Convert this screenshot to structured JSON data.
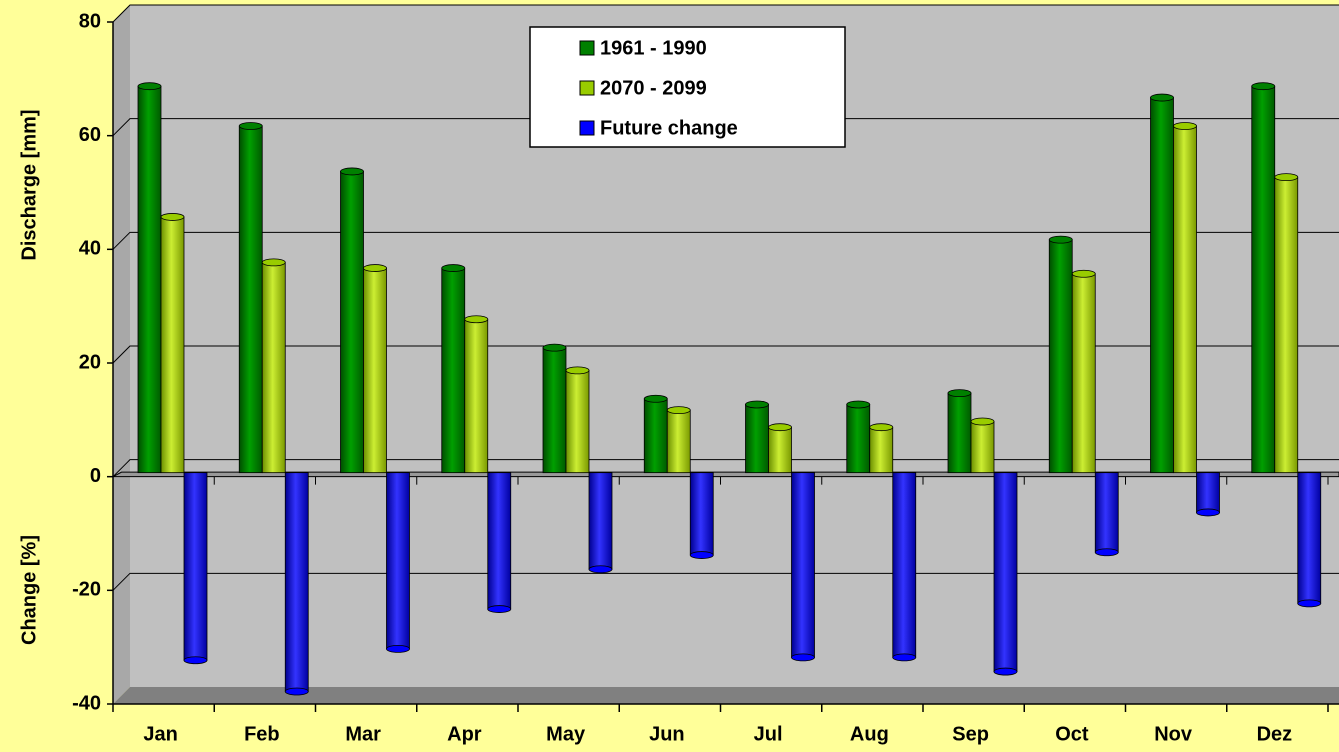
{
  "chart_data": {
    "type": "bar",
    "ylabel": "Discharge [mm]",
    "ylabel_change": "Change [%]",
    "categories": [
      "Jan",
      "Feb",
      "Mar",
      "Apr",
      "May",
      "Jun",
      "Jul",
      "Aug",
      "Sep",
      "Oct",
      "Nov",
      "Dez"
    ],
    "series": [
      {
        "name": "1961 - 1990",
        "color": "#008000",
        "values": [
          68,
          61,
          53,
          36,
          22,
          13,
          12,
          12,
          14,
          41,
          66,
          68
        ]
      },
      {
        "name": "2070 - 2099",
        "color": "#99cc00",
        "values": [
          45,
          37,
          36,
          27,
          18,
          11,
          8,
          8,
          9,
          35,
          61,
          52
        ]
      },
      {
        "name": "Future change",
        "color": "#0000ff",
        "values": [
          -33,
          -38.5,
          -31,
          -24,
          -17,
          -14.5,
          -32.5,
          -32.5,
          -35,
          -14,
          -7,
          -23
        ]
      }
    ],
    "ylim": [
      -40,
      80
    ],
    "yticks": [
      -40,
      -20,
      0,
      20,
      40,
      60,
      80
    ],
    "grid": true,
    "legend": "top"
  }
}
